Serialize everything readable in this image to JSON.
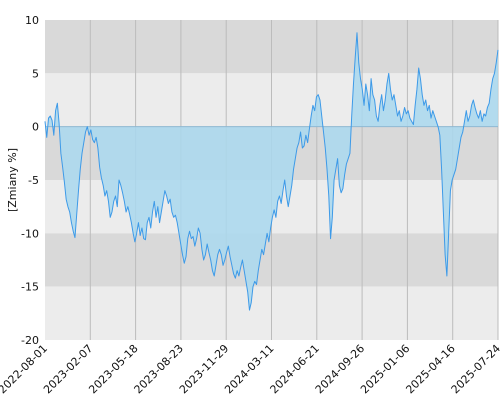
{
  "chart_data": {
    "type": "area",
    "ylabel": "[Zmiany %]",
    "ylim": [
      -20,
      10
    ],
    "yticks": [
      10,
      5,
      0,
      -5,
      -10,
      -15,
      -20
    ],
    "xticks": [
      "2022-08-01",
      "2023-02-07",
      "2023-05-18",
      "2023-08-23",
      "2023-11-29",
      "2024-03-11",
      "2024-06-21",
      "2024-09-26",
      "2025-01-06",
      "2025-04-16",
      "2025-07-24"
    ],
    "grid": true,
    "colors": {
      "line": "#3d9ae8",
      "fill": "#a9d8ee",
      "band_dark": "#d9d9d9",
      "band_light": "#ececec"
    },
    "series": [
      {
        "points": [
          [
            0.0,
            0.5
          ],
          [
            1,
            -1.0
          ],
          [
            2,
            0.8
          ],
          [
            3,
            1.0
          ],
          [
            4,
            0.6
          ],
          [
            5,
            -0.8
          ],
          [
            6,
            1.5
          ],
          [
            7,
            2.2
          ],
          [
            8,
            0.3
          ],
          [
            9,
            -2.5
          ],
          [
            10,
            -3.8
          ],
          [
            11,
            -5.2
          ],
          [
            12,
            -6.8
          ],
          [
            13,
            -7.5
          ],
          [
            14,
            -8.0
          ],
          [
            15,
            -9.0
          ],
          [
            16,
            -9.8
          ],
          [
            17,
            -10.4
          ],
          [
            18,
            -8.2
          ],
          [
            19,
            -6.0
          ],
          [
            20,
            -4.0
          ],
          [
            21,
            -2.5
          ],
          [
            22,
            -1.5
          ],
          [
            23,
            -0.5
          ],
          [
            24,
            0.0
          ],
          [
            25,
            -0.8
          ],
          [
            26,
            -0.3
          ],
          [
            27,
            -1.2
          ],
          [
            28,
            -1.5
          ],
          [
            29,
            -1.0
          ],
          [
            30,
            -2.0
          ],
          [
            31,
            -3.8
          ],
          [
            32,
            -4.8
          ],
          [
            33,
            -5.5
          ],
          [
            34,
            -6.5
          ],
          [
            35,
            -6.0
          ],
          [
            36,
            -7.0
          ],
          [
            37,
            -8.5
          ],
          [
            38,
            -8.0
          ],
          [
            39,
            -7.0
          ],
          [
            40,
            -6.5
          ],
          [
            41,
            -7.5
          ],
          [
            42,
            -5.0
          ],
          [
            43,
            -5.5
          ],
          [
            44,
            -6.2
          ],
          [
            45,
            -7.0
          ],
          [
            46,
            -8.0
          ],
          [
            47,
            -7.5
          ],
          [
            48,
            -8.2
          ],
          [
            49,
            -9.0
          ],
          [
            50,
            -10.0
          ],
          [
            51,
            -10.8
          ],
          [
            52,
            -10.0
          ],
          [
            53,
            -9.0
          ],
          [
            54,
            -10.2
          ],
          [
            55,
            -9.5
          ],
          [
            56,
            -10.5
          ],
          [
            57,
            -10.6
          ],
          [
            58,
            -9.0
          ],
          [
            59,
            -8.5
          ],
          [
            60,
            -9.5
          ],
          [
            61,
            -8.0
          ],
          [
            62,
            -7.0
          ],
          [
            63,
            -8.5
          ],
          [
            64,
            -7.5
          ],
          [
            65,
            -9.0
          ],
          [
            66,
            -8.0
          ],
          [
            67,
            -7.0
          ],
          [
            68,
            -6.0
          ],
          [
            69,
            -6.5
          ],
          [
            70,
            -7.2
          ],
          [
            71,
            -6.8
          ],
          [
            72,
            -8.0
          ],
          [
            73,
            -8.5
          ],
          [
            74,
            -8.3
          ],
          [
            75,
            -9.0
          ],
          [
            76,
            -10.0
          ],
          [
            77,
            -11.0
          ],
          [
            78,
            -12.0
          ],
          [
            79,
            -12.8
          ],
          [
            80,
            -12.2
          ],
          [
            81,
            -10.5
          ],
          [
            82,
            -9.8
          ],
          [
            83,
            -10.5
          ],
          [
            84,
            -10.3
          ],
          [
            85,
            -11.2
          ],
          [
            86,
            -10.5
          ],
          [
            87,
            -9.5
          ],
          [
            88,
            -10.0
          ],
          [
            89,
            -11.5
          ],
          [
            90,
            -12.5
          ],
          [
            91,
            -12.0
          ],
          [
            92,
            -11.0
          ],
          [
            93,
            -11.8
          ],
          [
            94,
            -12.5
          ],
          [
            95,
            -13.5
          ],
          [
            96,
            -14.0
          ],
          [
            97,
            -13.0
          ],
          [
            98,
            -12.0
          ],
          [
            99,
            -11.5
          ],
          [
            100,
            -12.0
          ],
          [
            101,
            -13.0
          ],
          [
            102,
            -12.5
          ],
          [
            103,
            -11.8
          ],
          [
            104,
            -11.2
          ],
          [
            105,
            -12.2
          ],
          [
            106,
            -13.0
          ],
          [
            107,
            -13.8
          ],
          [
            108,
            -14.2
          ],
          [
            109,
            -13.5
          ],
          [
            110,
            -14.0
          ],
          [
            111,
            -13.2
          ],
          [
            112,
            -12.5
          ],
          [
            113,
            -13.5
          ],
          [
            114,
            -14.5
          ],
          [
            115,
            -15.5
          ],
          [
            116,
            -17.2
          ],
          [
            117,
            -16.5
          ],
          [
            118,
            -15.0
          ],
          [
            119,
            -14.5
          ],
          [
            120,
            -14.8
          ],
          [
            121,
            -13.5
          ],
          [
            122,
            -12.5
          ],
          [
            123,
            -11.5
          ],
          [
            124,
            -12.0
          ],
          [
            125,
            -11.0
          ],
          [
            126,
            -10.0
          ],
          [
            127,
            -10.8
          ],
          [
            128,
            -9.5
          ],
          [
            129,
            -8.5
          ],
          [
            130,
            -7.8
          ],
          [
            131,
            -8.5
          ],
          [
            132,
            -7.0
          ],
          [
            133,
            -6.5
          ],
          [
            134,
            -7.2
          ],
          [
            135,
            -6.0
          ],
          [
            136,
            -5.0
          ],
          [
            137,
            -6.5
          ],
          [
            138,
            -7.5
          ],
          [
            139,
            -6.5
          ],
          [
            140,
            -5.5
          ],
          [
            141,
            -4.0
          ],
          [
            142,
            -3.0
          ],
          [
            143,
            -2.0
          ],
          [
            144,
            -1.5
          ],
          [
            145,
            -0.5
          ],
          [
            146,
            -2.0
          ],
          [
            147,
            -1.8
          ],
          [
            148,
            -0.8
          ],
          [
            149,
            -1.5
          ],
          [
            150,
            -0.2
          ],
          [
            151,
            1.0
          ],
          [
            152,
            2.0
          ],
          [
            153,
            1.5
          ],
          [
            154,
            2.8
          ],
          [
            155,
            3.0
          ],
          [
            156,
            2.5
          ],
          [
            157,
            1.0
          ],
          [
            158,
            -0.5
          ],
          [
            159,
            -2.0
          ],
          [
            160,
            -4.0
          ],
          [
            161,
            -6.5
          ],
          [
            162,
            -10.5
          ],
          [
            163,
            -8.5
          ],
          [
            164,
            -5.0
          ],
          [
            165,
            -4.0
          ],
          [
            166,
            -3.0
          ],
          [
            167,
            -5.5
          ],
          [
            168,
            -6.2
          ],
          [
            169,
            -5.8
          ],
          [
            170,
            -4.5
          ],
          [
            171,
            -3.5
          ],
          [
            172,
            -3.0
          ],
          [
            173,
            -2.5
          ],
          [
            174,
            1.0
          ],
          [
            175,
            4.0
          ],
          [
            176,
            6.5
          ],
          [
            177,
            8.8
          ],
          [
            178,
            6.0
          ],
          [
            179,
            4.5
          ],
          [
            180,
            3.5
          ],
          [
            181,
            2.0
          ],
          [
            182,
            4.0
          ],
          [
            183,
            3.0
          ],
          [
            184,
            1.5
          ],
          [
            185,
            4.5
          ],
          [
            186,
            3.0
          ],
          [
            187,
            2.5
          ],
          [
            188,
            1.0
          ],
          [
            189,
            0.5
          ],
          [
            190,
            2.0
          ],
          [
            191,
            3.0
          ],
          [
            192,
            1.5
          ],
          [
            193,
            2.5
          ],
          [
            194,
            4.0
          ],
          [
            195,
            5.0
          ],
          [
            196,
            3.5
          ],
          [
            197,
            2.5
          ],
          [
            198,
            3.0
          ],
          [
            199,
            2.0
          ],
          [
            200,
            1.0
          ],
          [
            201,
            1.5
          ],
          [
            202,
            0.5
          ],
          [
            203,
            1.0
          ],
          [
            204,
            1.8
          ],
          [
            205,
            1.2
          ],
          [
            206,
            1.5
          ],
          [
            207,
            0.8
          ],
          [
            208,
            0.5
          ],
          [
            209,
            0.2
          ],
          [
            210,
            2.0
          ],
          [
            211,
            3.5
          ],
          [
            212,
            5.5
          ],
          [
            213,
            4.5
          ],
          [
            214,
            3.0
          ],
          [
            215,
            2.0
          ],
          [
            216,
            2.5
          ],
          [
            217,
            1.5
          ],
          [
            218,
            2.0
          ],
          [
            219,
            0.8
          ],
          [
            220,
            1.5
          ],
          [
            221,
            1.0
          ],
          [
            222,
            0.5
          ],
          [
            223,
            0.0
          ],
          [
            224,
            -0.8
          ],
          [
            225,
            -4.0
          ],
          [
            226,
            -8.0
          ],
          [
            227,
            -12.0
          ],
          [
            228,
            -14.0
          ],
          [
            229,
            -10.0
          ],
          [
            230,
            -6.0
          ],
          [
            231,
            -5.0
          ],
          [
            232,
            -4.5
          ],
          [
            233,
            -4.0
          ],
          [
            234,
            -3.0
          ],
          [
            235,
            -2.0
          ],
          [
            236,
            -1.0
          ],
          [
            237,
            -0.5
          ],
          [
            238,
            0.5
          ],
          [
            239,
            1.5
          ],
          [
            240,
            0.5
          ],
          [
            241,
            1.0
          ],
          [
            242,
            2.0
          ],
          [
            243,
            2.5
          ],
          [
            244,
            1.8
          ],
          [
            245,
            1.2
          ],
          [
            246,
            0.8
          ],
          [
            247,
            1.5
          ],
          [
            248,
            0.5
          ],
          [
            249,
            1.2
          ],
          [
            250,
            1.0
          ],
          [
            251,
            1.8
          ],
          [
            252,
            2.2
          ],
          [
            253,
            3.5
          ],
          [
            254,
            4.5
          ],
          [
            255,
            5.0
          ],
          [
            256,
            6.0
          ],
          [
            257,
            7.2
          ]
        ]
      }
    ]
  }
}
